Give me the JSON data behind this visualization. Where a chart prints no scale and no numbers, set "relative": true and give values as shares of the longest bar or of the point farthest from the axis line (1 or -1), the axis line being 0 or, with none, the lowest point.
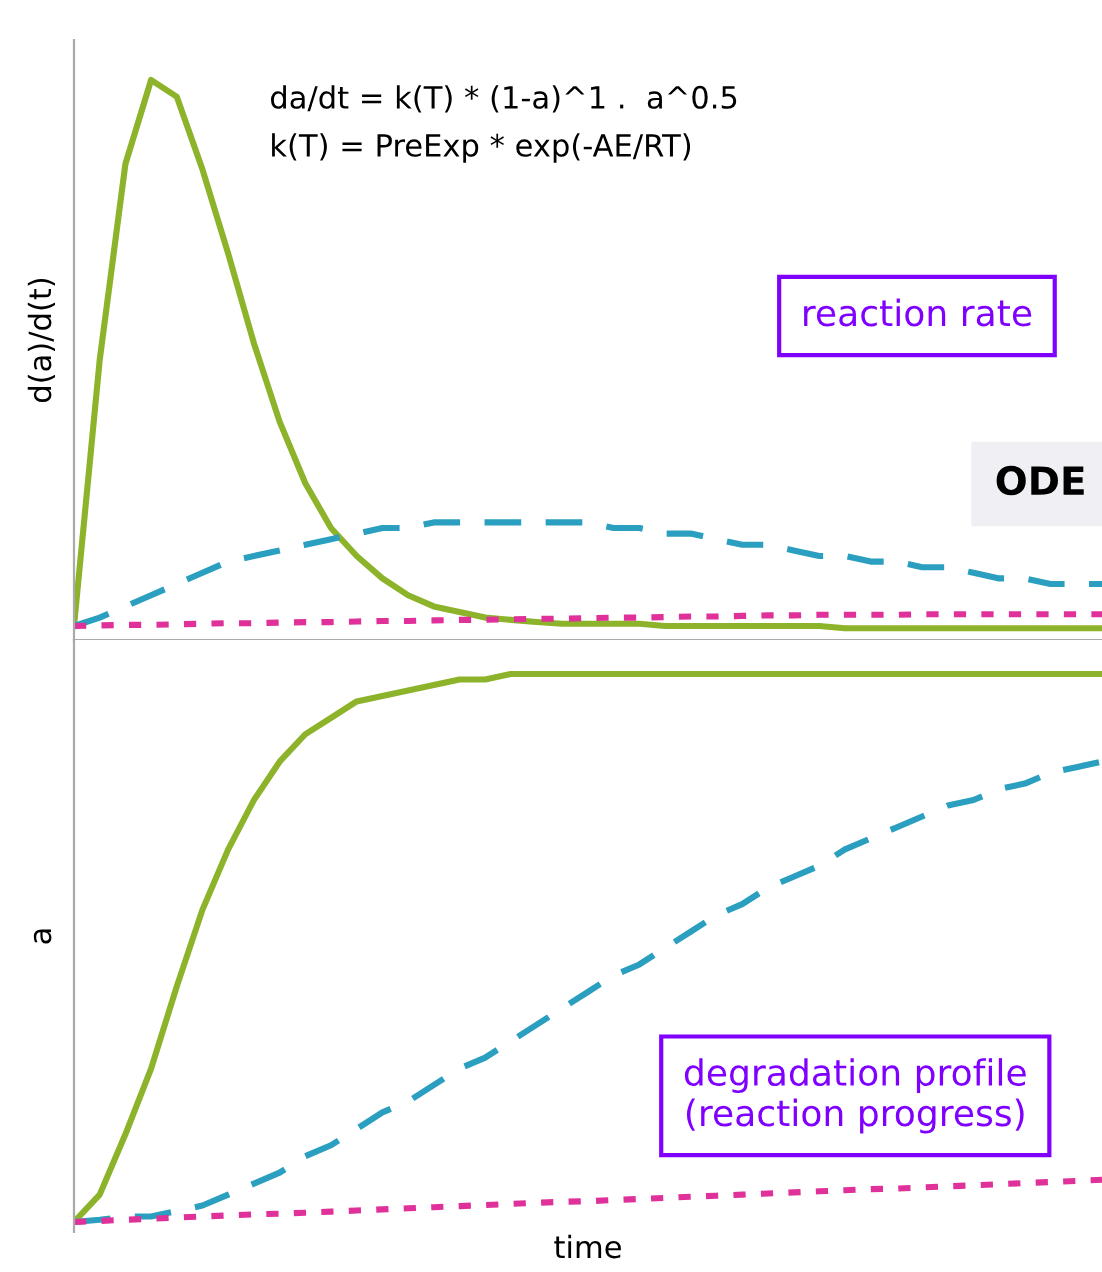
{
  "chart_data": [
    {
      "type": "line",
      "relative": true,
      "ylabel": "d(a)/d(t)",
      "categories": [
        null,
        null,
        null,
        null,
        null,
        null,
        null,
        null,
        null,
        null,
        null,
        null,
        null,
        null,
        null,
        null,
        null,
        null,
        null,
        null,
        null,
        null,
        null,
        null,
        null,
        null,
        null,
        null,
        null,
        null,
        null,
        null,
        null,
        null,
        null,
        null,
        null,
        null,
        null,
        null,
        null
      ],
      "series": [
        {
          "color": "#8db32b",
          "line_style": "solid",
          "values": [
            0.025,
            0.5,
            0.85,
            1.0,
            0.97,
            0.84,
            0.69,
            0.53,
            0.39,
            0.28,
            0.2,
            0.15,
            0.11,
            0.08,
            0.06,
            0.05,
            0.04,
            0.036,
            0.032,
            0.029,
            0.029,
            0.029,
            0.029,
            0.025,
            0.025,
            0.025,
            0.025,
            0.025,
            0.025,
            0.025,
            0.021,
            0.021,
            0.021,
            0.021,
            0.021,
            0.021,
            0.021,
            0.021,
            0.021,
            0.021,
            0.021
          ]
        },
        {
          "color": "#2a9fc0",
          "line_style": "dashed",
          "values": [
            0.025,
            0.04,
            0.06,
            0.08,
            0.1,
            0.12,
            0.14,
            0.15,
            0.16,
            0.17,
            0.18,
            0.19,
            0.2,
            0.2,
            0.21,
            0.21,
            0.21,
            0.21,
            0.21,
            0.21,
            0.21,
            0.2,
            0.2,
            0.19,
            0.19,
            0.18,
            0.17,
            0.17,
            0.16,
            0.15,
            0.15,
            0.14,
            0.14,
            0.13,
            0.13,
            0.12,
            0.11,
            0.11,
            0.1,
            0.1,
            0.1
          ]
        },
        {
          "color": "#e0309a",
          "line_style": "dotted",
          "values": [
            0.025,
            0.026,
            0.027,
            0.027,
            0.028,
            0.029,
            0.03,
            0.03,
            0.031,
            0.032,
            0.032,
            0.033,
            0.034,
            0.034,
            0.035,
            0.036,
            0.036,
            0.037,
            0.038,
            0.038,
            0.039,
            0.04,
            0.04,
            0.041,
            0.042,
            0.042,
            0.043,
            0.044,
            0.044,
            0.045,
            0.045,
            0.045,
            0.045,
            0.046,
            0.046,
            0.046,
            0.046,
            0.046,
            0.046,
            0.046,
            0.046
          ]
        }
      ],
      "annotations": [
        "da/dt = k(T) * (1-a)^1 .  a^0.5",
        "k(T) = PreExp * exp(-AE/RT)",
        "reaction rate",
        "ODE"
      ]
    },
    {
      "type": "line",
      "relative": true,
      "ylabel": "a",
      "xlabel": "time",
      "categories": [
        null,
        null,
        null,
        null,
        null,
        null,
        null,
        null,
        null,
        null,
        null,
        null,
        null,
        null,
        null,
        null,
        null,
        null,
        null,
        null,
        null,
        null,
        null,
        null,
        null,
        null,
        null,
        null,
        null,
        null,
        null,
        null,
        null,
        null,
        null,
        null,
        null,
        null,
        null,
        null,
        null
      ],
      "series": [
        {
          "color": "#8db32b",
          "line_style": "solid",
          "values": [
            0,
            0.05,
            0.16,
            0.28,
            0.43,
            0.57,
            0.68,
            0.77,
            0.84,
            0.89,
            0.92,
            0.95,
            0.96,
            0.97,
            0.98,
            0.99,
            0.99,
            1.0,
            1.0,
            1.0,
            1.0,
            1.0,
            1.0,
            1.0,
            1.0,
            1.0,
            1.0,
            1.0,
            1.0,
            1.0,
            1.0,
            1.0,
            1.0,
            1.0,
            1.0,
            1.0,
            1.0,
            1.0,
            1.0,
            1.0,
            1.0
          ]
        },
        {
          "color": "#2a9fc0",
          "line_style": "dashed",
          "values": [
            0,
            0.004,
            0.01,
            0.01,
            0.02,
            0.03,
            0.05,
            0.07,
            0.09,
            0.12,
            0.14,
            0.17,
            0.2,
            0.22,
            0.25,
            0.28,
            0.3,
            0.33,
            0.36,
            0.39,
            0.42,
            0.45,
            0.47,
            0.5,
            0.53,
            0.56,
            0.58,
            0.61,
            0.63,
            0.65,
            0.68,
            0.7,
            0.72,
            0.74,
            0.76,
            0.77,
            0.79,
            0.8,
            0.82,
            0.83,
            0.84
          ]
        },
        {
          "color": "#e0309a",
          "line_style": "dotted",
          "values": [
            0,
            0.002,
            0.004,
            0.006,
            0.008,
            0.01,
            0.012,
            0.014,
            0.015,
            0.017,
            0.019,
            0.021,
            0.023,
            0.025,
            0.027,
            0.029,
            0.031,
            0.033,
            0.035,
            0.037,
            0.038,
            0.04,
            0.042,
            0.044,
            0.046,
            0.048,
            0.05,
            0.052,
            0.054,
            0.056,
            0.058,
            0.06,
            0.061,
            0.063,
            0.065,
            0.067,
            0.069,
            0.071,
            0.073,
            0.075,
            0.077
          ]
        }
      ],
      "annotations": [
        "degradation profile\n(reaction progress)"
      ]
    }
  ]
}
